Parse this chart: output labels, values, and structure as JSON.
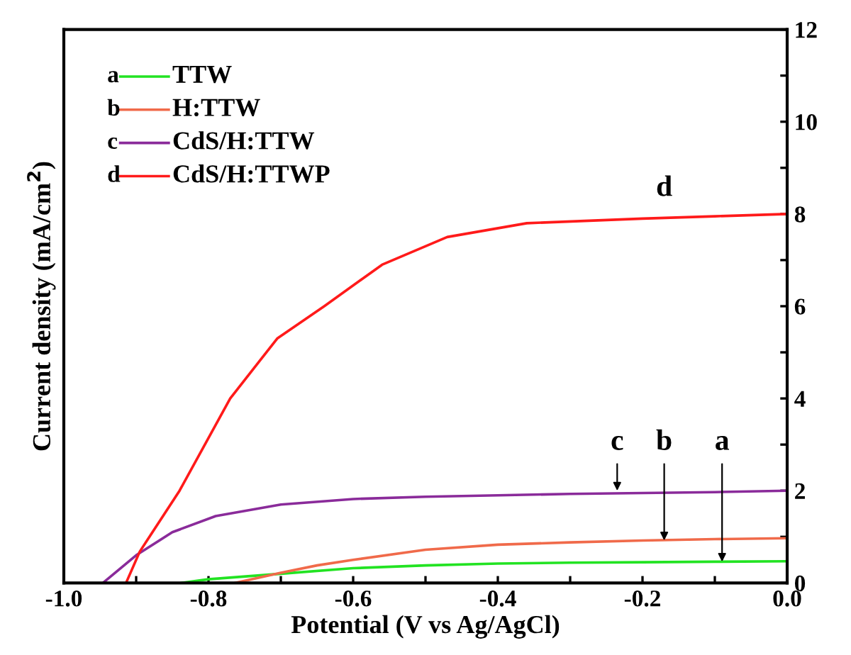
{
  "chart_data": {
    "type": "line",
    "xlabel": "Potential (V vs Ag/AgCl)",
    "ylabel": "Current density (mA/cm$^{2}$)",
    "xlim": [
      -1.0,
      0.0
    ],
    "ylim": [
      0,
      12
    ],
    "xticks": [
      {
        "value": -1.0,
        "label": "-1.0"
      },
      {
        "value": -0.9,
        "label": null
      },
      {
        "value": -0.8,
        "label": "-0.8"
      },
      {
        "value": -0.7,
        "label": null
      },
      {
        "value": -0.6,
        "label": "-0.6"
      },
      {
        "value": -0.5,
        "label": null
      },
      {
        "value": -0.4,
        "label": "-0.4"
      },
      {
        "value": -0.3,
        "label": null
      },
      {
        "value": -0.2,
        "label": "-0.2"
      },
      {
        "value": -0.1,
        "label": null
      },
      {
        "value": 0.0,
        "label": "0.0"
      }
    ],
    "yticks": [
      0,
      {
        "value": 1,
        "label": null
      },
      2,
      {
        "value": 3,
        "label": null
      },
      4,
      {
        "value": 5,
        "label": null
      },
      6,
      {
        "value": 7,
        "label": null
      },
      8,
      {
        "value": 9,
        "label": null
      },
      10,
      {
        "value": 11,
        "label": null
      },
      12
    ],
    "grid": false,
    "legend": "top left",
    "marker": "none",
    "line_style": "solid",
    "series": [
      {
        "name": "TTW",
        "color": "#22e322",
        "x": [
          -0.837,
          -0.8,
          -0.7,
          -0.6,
          -0.5,
          -0.4,
          -0.3,
          -0.2,
          -0.1,
          0.0
        ],
        "values": [
          0,
          0.08,
          0.2,
          0.32,
          0.38,
          0.42,
          0.44,
          0.45,
          0.46,
          0.47
        ]
      },
      {
        "name": "H:TTW",
        "color": "#f06a4a",
        "x": [
          -0.763,
          -0.7,
          -0.65,
          -0.6,
          -0.5,
          -0.4,
          -0.3,
          -0.2,
          -0.1,
          0.0
        ],
        "values": [
          0,
          0.22,
          0.38,
          0.5,
          0.72,
          0.83,
          0.88,
          0.92,
          0.95,
          0.97
        ]
      },
      {
        "name": "CdS/H:TTW",
        "color": "#8a2b9a",
        "x": [
          -0.946,
          -0.9,
          -0.85,
          -0.79,
          -0.7,
          -0.6,
          -0.5,
          -0.4,
          -0.3,
          -0.2,
          -0.1,
          0.0
        ],
        "values": [
          0,
          0.6,
          1.1,
          1.45,
          1.7,
          1.82,
          1.87,
          1.9,
          1.93,
          1.95,
          1.97,
          2.0
        ]
      },
      {
        "name": "CdS/H:TTWP",
        "color": "#ff1a1a",
        "x": [
          -0.914,
          -0.895,
          -0.84,
          -0.77,
          -0.705,
          -0.64,
          -0.56,
          -0.47,
          -0.36,
          -0.28,
          -0.2,
          -0.1,
          0.0
        ],
        "values": [
          0,
          0.68,
          2.0,
          4.0,
          5.3,
          6.0,
          6.9,
          7.5,
          7.8,
          7.85,
          7.9,
          7.95,
          8.0
        ]
      }
    ],
    "annotations": [
      "a",
      "b",
      "c",
      "d",
      {
        "text": "d",
        "x": -0.17,
        "y": 8.0
      },
      {
        "text": "c",
        "x": -0.235,
        "y": 2.0
      },
      {
        "text": "b",
        "x": -0.17,
        "y": 0.92
      },
      {
        "text": "a",
        "x": -0.09,
        "y": 0.46
      }
    ]
  }
}
